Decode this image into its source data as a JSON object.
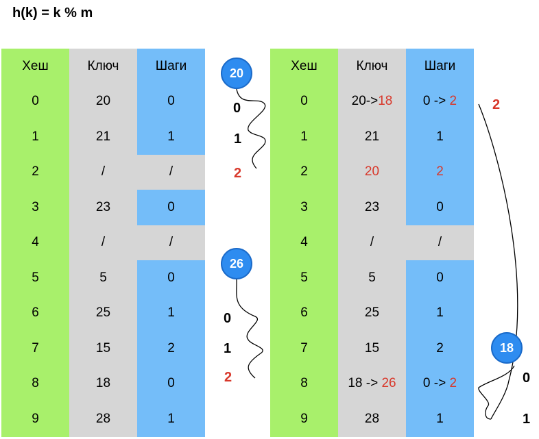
{
  "formula": "h(k) = k % m",
  "headers": {
    "hash": "Хеш",
    "key": "Ключ",
    "steps": "Шаги"
  },
  "left_table": [
    {
      "hash": "0",
      "key": "20",
      "steps": "0",
      "steps_bg": "blue"
    },
    {
      "hash": "1",
      "key": "21",
      "steps": "1",
      "steps_bg": "blue"
    },
    {
      "hash": "2",
      "key": "/",
      "steps": "/",
      "steps_bg": "gray"
    },
    {
      "hash": "3",
      "key": "23",
      "steps": "0",
      "steps_bg": "blue"
    },
    {
      "hash": "4",
      "key": "/",
      "steps": "/",
      "steps_bg": "gray"
    },
    {
      "hash": "5",
      "key": "5",
      "steps": "0",
      "steps_bg": "blue"
    },
    {
      "hash": "6",
      "key": "25",
      "steps": "1",
      "steps_bg": "blue"
    },
    {
      "hash": "7",
      "key": "15",
      "steps": "2",
      "steps_bg": "blue"
    },
    {
      "hash": "8",
      "key": "18",
      "steps": "0",
      "steps_bg": "blue"
    },
    {
      "hash": "9",
      "key": "28",
      "steps": "1",
      "steps_bg": "blue"
    }
  ],
  "right_table": [
    {
      "hash": "0",
      "key": "20->",
      "key_new": "18",
      "steps": "0 -> ",
      "steps_new": "2",
      "steps_bg": "blue"
    },
    {
      "hash": "1",
      "key": "21",
      "steps": "1",
      "steps_bg": "blue"
    },
    {
      "hash": "2",
      "key": "",
      "key_new": "20",
      "steps": "",
      "steps_new": "2",
      "steps_bg": "blue"
    },
    {
      "hash": "3",
      "key": "23",
      "steps": "0",
      "steps_bg": "blue"
    },
    {
      "hash": "4",
      "key": "/",
      "steps": "/",
      "steps_bg": "gray"
    },
    {
      "hash": "5",
      "key": "5",
      "steps": "0",
      "steps_bg": "blue"
    },
    {
      "hash": "6",
      "key": "25",
      "steps": "1",
      "steps_bg": "blue"
    },
    {
      "hash": "7",
      "key": "15",
      "steps": "2",
      "steps_bg": "blue"
    },
    {
      "hash": "8",
      "key": "18 -> ",
      "key_new": "26",
      "steps": "0 -> ",
      "steps_new": "2",
      "steps_bg": "blue"
    },
    {
      "hash": "9",
      "key": "28",
      "steps": "1",
      "steps_bg": "blue"
    }
  ],
  "bubbles": {
    "b20": "20",
    "b26": "26",
    "b18": "18"
  },
  "labels": {
    "p20": [
      "0",
      "1",
      "2"
    ],
    "p26": [
      "0",
      "1",
      "2"
    ],
    "p18": [
      "0",
      "1",
      "2"
    ]
  },
  "colors": {
    "hash": "#a8f06b",
    "key": "#d6d6d6",
    "steps": "#74bdf9",
    "accent": "#d8382b",
    "bubble": "#2e8cf0"
  }
}
